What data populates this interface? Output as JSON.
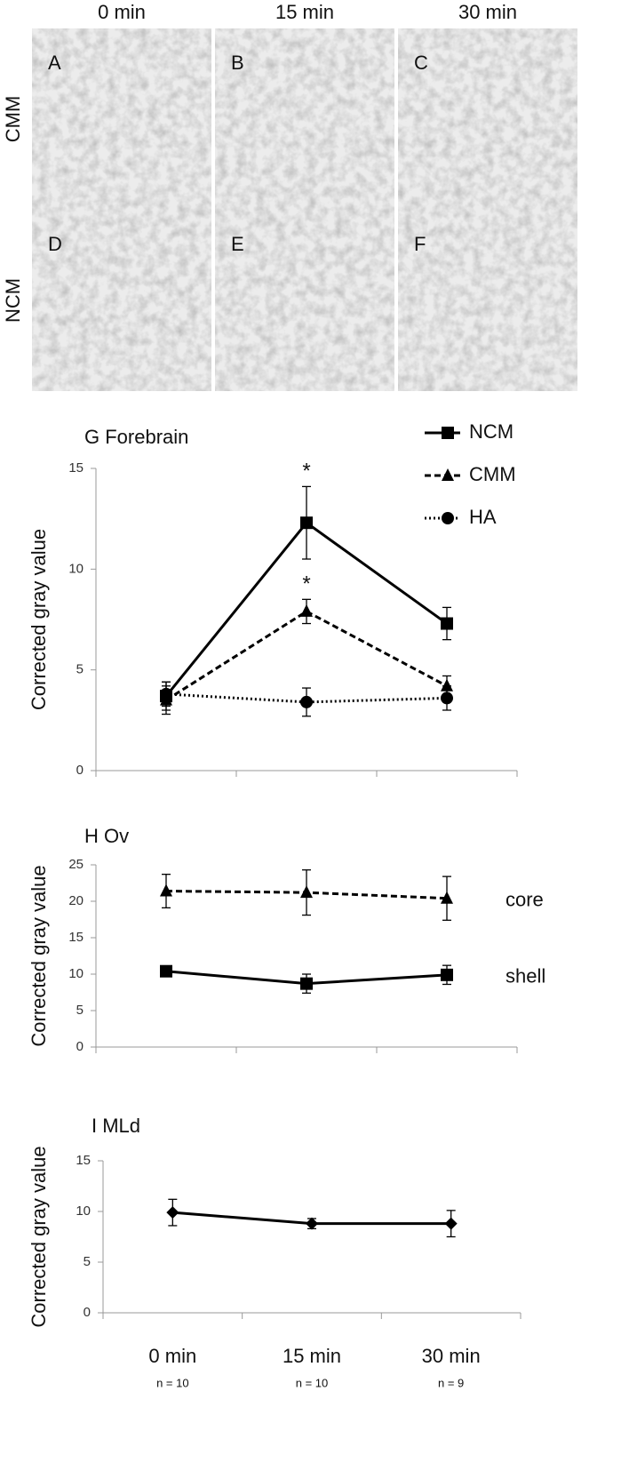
{
  "panels": {
    "column_headers": [
      "0 min",
      "15 min",
      "30 min"
    ],
    "row_labels": [
      "CMM",
      "NCM"
    ],
    "letters": [
      [
        "A",
        "B",
        "C"
      ],
      [
        "D",
        "E",
        "F"
      ]
    ]
  },
  "chart_data": [
    {
      "type": "line",
      "title": "G  Forebrain",
      "y_label": "Corrected gray value",
      "categories": [
        null,
        null,
        null
      ],
      "ylim": [
        0,
        15
      ],
      "yticks": [
        0,
        5,
        10,
        15
      ],
      "legend": "upper right",
      "series": [
        {
          "name": "NCM",
          "color": "#000000",
          "dash": "solid",
          "marker": "square",
          "values": [
            3.7,
            12.3,
            7.3
          ],
          "errors": [
            0.7,
            1.8,
            0.8
          ],
          "significance": [
            null,
            "*",
            null
          ]
        },
        {
          "name": "CMM",
          "color": "#000000",
          "dash": "dashed",
          "marker": "triangle",
          "values": [
            3.5,
            7.9,
            4.2
          ],
          "errors": [
            0.7,
            0.6,
            0.5
          ],
          "significance": [
            null,
            "*",
            null
          ]
        },
        {
          "name": "HA",
          "color": "#000000",
          "dash": "dotted",
          "marker": "circle",
          "values": [
            3.8,
            3.4,
            3.6
          ],
          "errors": [
            0.6,
            0.7,
            0.6
          ]
        }
      ]
    },
    {
      "type": "line",
      "title": "H  Ov",
      "y_label": "Corrected gray value",
      "categories": [
        null,
        null,
        null
      ],
      "ylim": [
        0,
        25
      ],
      "yticks": [
        0,
        5,
        10,
        15,
        20,
        25
      ],
      "direct_labels": true,
      "series": [
        {
          "name": "core",
          "color": "#000000",
          "dash": "dashed",
          "marker": "triangle",
          "values": [
            21.4,
            21.2,
            20.4
          ],
          "errors": [
            2.3,
            3.1,
            3.0
          ]
        },
        {
          "name": "shell",
          "color": "#000000",
          "dash": "solid",
          "marker": "square",
          "values": [
            10.4,
            8.7,
            9.9
          ],
          "errors": [
            0.5,
            1.3,
            1.3
          ]
        }
      ]
    },
    {
      "type": "line",
      "title": "I  MLd",
      "y_label": "Corrected gray value",
      "categories": [
        "0 min",
        "15 min",
        "30 min"
      ],
      "n_labels": [
        "n = 10",
        "n = 10",
        "n = 9"
      ],
      "ylim": [
        0,
        15
      ],
      "yticks": [
        0,
        5,
        10,
        15
      ],
      "series": [
        {
          "color": "#000000",
          "dash": "solid",
          "marker": "diamond",
          "values": [
            9.9,
            8.8,
            8.8
          ],
          "errors": [
            1.3,
            0.5,
            1.3
          ]
        }
      ]
    }
  ]
}
